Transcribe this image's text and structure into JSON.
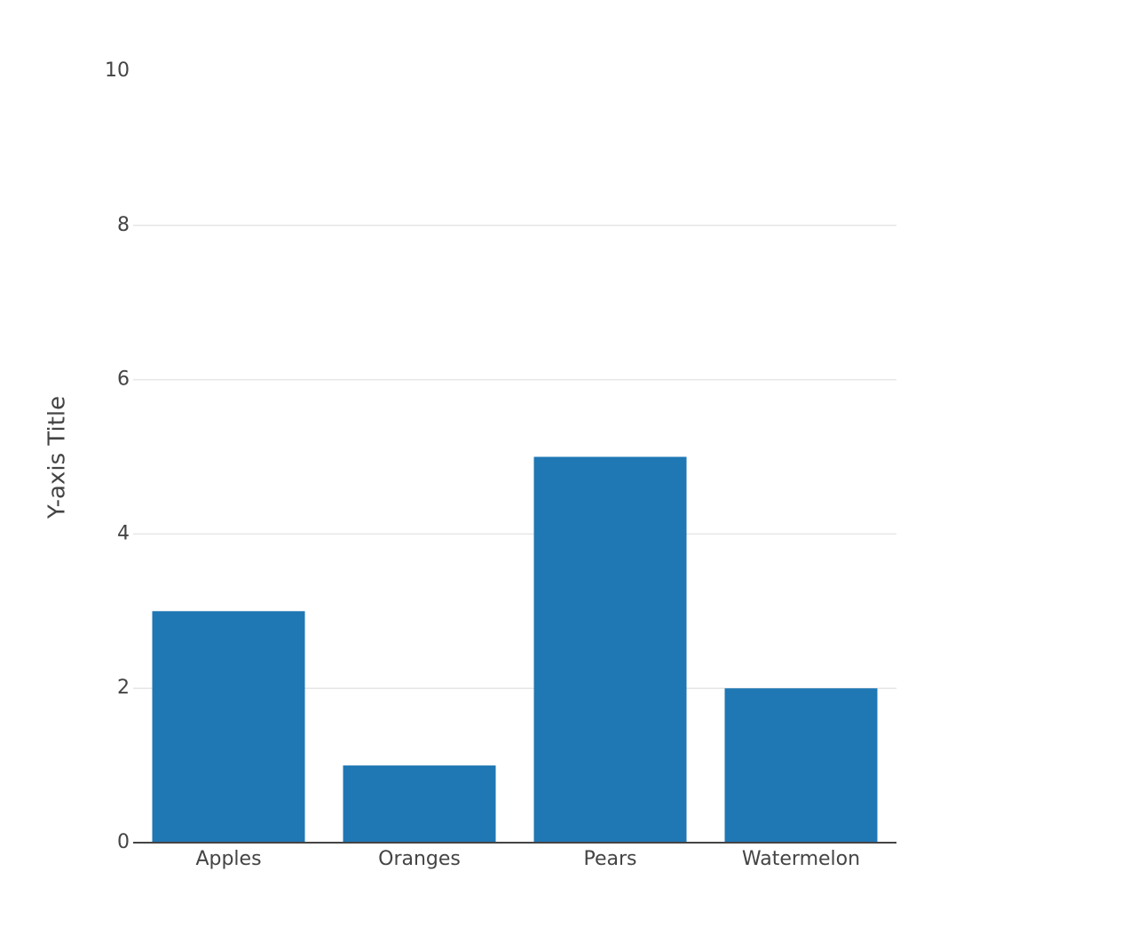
{
  "chart_data": {
    "type": "bar",
    "y_axis_title": "Y-axis Title",
    "categories": [
      "Apples",
      "Oranges",
      "Pears",
      "Watermelon"
    ],
    "values": [
      3,
      1,
      5,
      2
    ],
    "color": "#1f77b4",
    "ylim": [
      0,
      10
    ],
    "yticks": [
      0,
      2,
      4,
      6,
      8,
      10
    ],
    "grid": true
  }
}
